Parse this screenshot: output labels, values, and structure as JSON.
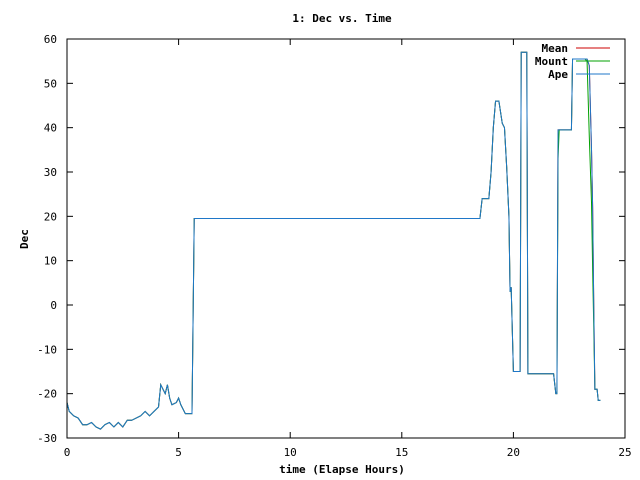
{
  "chart_data": {
    "type": "line",
    "title": "1: Dec vs. Time",
    "xlabel": "time (Elapse Hours)",
    "ylabel": "Dec",
    "xlim": [
      0,
      25
    ],
    "ylim": [
      -30,
      60
    ],
    "x_ticks": [
      0,
      5,
      10,
      15,
      20,
      25
    ],
    "y_ticks": [
      -30,
      -20,
      -10,
      0,
      10,
      20,
      30,
      40,
      50,
      60
    ],
    "legend_position": "top-right",
    "grid": false,
    "series": [
      {
        "name": "Mean",
        "color": "#cc0000",
        "points": [
          [
            0,
            -22
          ],
          [
            0.1,
            -24
          ],
          [
            0.3,
            -25
          ],
          [
            0.5,
            -25.5
          ],
          [
            0.7,
            -27
          ],
          [
            0.9,
            -27
          ],
          [
            1.1,
            -26.5
          ],
          [
            1.3,
            -27.5
          ],
          [
            1.5,
            -28
          ],
          [
            1.7,
            -27
          ],
          [
            1.9,
            -26.5
          ],
          [
            2.1,
            -27.5
          ],
          [
            2.3,
            -26.5
          ],
          [
            2.5,
            -27.5
          ],
          [
            2.7,
            -26
          ],
          [
            2.9,
            -26
          ],
          [
            3.1,
            -25.5
          ],
          [
            3.3,
            -25
          ],
          [
            3.5,
            -24
          ],
          [
            3.7,
            -25
          ],
          [
            3.9,
            -24
          ],
          [
            4.1,
            -23
          ],
          [
            4.2,
            -18
          ],
          [
            4.4,
            -20
          ],
          [
            4.5,
            -18
          ],
          [
            4.6,
            -21
          ],
          [
            4.7,
            -22.5
          ],
          [
            4.9,
            -22
          ],
          [
            5.0,
            -21
          ],
          [
            5.1,
            -22.5
          ],
          [
            5.3,
            -24.5
          ],
          [
            5.6,
            -24.5
          ],
          [
            5.7,
            19.5
          ],
          [
            18.5,
            19.5
          ],
          [
            18.6,
            24
          ],
          [
            18.9,
            24
          ],
          [
            19.0,
            30
          ],
          [
            19.1,
            40
          ],
          [
            19.2,
            46
          ],
          [
            19.35,
            46
          ],
          [
            19.5,
            41
          ],
          [
            19.6,
            40
          ],
          [
            19.7,
            31
          ],
          [
            19.8,
            20
          ],
          [
            19.85,
            3
          ],
          [
            19.9,
            4
          ],
          [
            20.0,
            -15
          ],
          [
            20.3,
            -15
          ],
          [
            20.35,
            57
          ],
          [
            20.6,
            57
          ],
          [
            20.65,
            -15.5
          ],
          [
            21.8,
            -15.5
          ],
          [
            21.9,
            -20
          ],
          [
            21.95,
            -20
          ],
          [
            22.0,
            39.5
          ],
          [
            22.6,
            39.5
          ],
          [
            22.65,
            55.5
          ],
          [
            23.3,
            55.5
          ],
          [
            23.4,
            54
          ],
          [
            23.5,
            35
          ],
          [
            23.55,
            22
          ],
          [
            23.6,
            0
          ],
          [
            23.65,
            -19
          ],
          [
            23.75,
            -19
          ],
          [
            23.8,
            -21.5
          ],
          [
            23.9,
            -21.5
          ]
        ]
      },
      {
        "name": "Mount",
        "color": "#00a000",
        "points": [
          [
            0,
            -22
          ],
          [
            0.1,
            -24
          ],
          [
            0.3,
            -25
          ],
          [
            0.5,
            -25.5
          ],
          [
            0.7,
            -27
          ],
          [
            0.9,
            -27
          ],
          [
            1.1,
            -26.5
          ],
          [
            1.3,
            -27.5
          ],
          [
            1.5,
            -28
          ],
          [
            1.7,
            -27
          ],
          [
            1.9,
            -26.5
          ],
          [
            2.1,
            -27.5
          ],
          [
            2.3,
            -26.5
          ],
          [
            2.5,
            -27.5
          ],
          [
            2.7,
            -26
          ],
          [
            2.9,
            -26
          ],
          [
            3.1,
            -25.5
          ],
          [
            3.3,
            -25
          ],
          [
            3.5,
            -24
          ],
          [
            3.7,
            -25
          ],
          [
            3.9,
            -24
          ],
          [
            4.1,
            -23
          ],
          [
            4.2,
            -18
          ],
          [
            4.4,
            -20
          ],
          [
            4.5,
            -18
          ],
          [
            4.6,
            -21
          ],
          [
            4.7,
            -22.5
          ],
          [
            4.9,
            -22
          ],
          [
            5.0,
            -21
          ],
          [
            5.1,
            -22.5
          ],
          [
            5.3,
            -24.5
          ],
          [
            5.6,
            -24.5
          ],
          [
            5.7,
            19.5
          ],
          [
            18.5,
            19.5
          ],
          [
            18.6,
            24
          ],
          [
            18.9,
            24
          ],
          [
            19.0,
            30
          ],
          [
            19.1,
            40
          ],
          [
            19.2,
            46
          ],
          [
            19.35,
            46
          ],
          [
            19.5,
            41
          ],
          [
            19.6,
            40
          ],
          [
            19.7,
            31
          ],
          [
            19.8,
            20
          ],
          [
            19.85,
            3
          ],
          [
            19.9,
            4
          ],
          [
            20.0,
            -15
          ],
          [
            20.3,
            -15
          ],
          [
            20.35,
            57
          ],
          [
            20.6,
            57
          ],
          [
            20.65,
            -15.5
          ],
          [
            21.8,
            -15.5
          ],
          [
            21.9,
            -20
          ],
          [
            21.95,
            -20
          ],
          [
            22.0,
            33
          ],
          [
            22.05,
            39.5
          ],
          [
            22.6,
            39.5
          ],
          [
            22.65,
            55.5
          ],
          [
            23.2,
            55.5
          ],
          [
            23.3,
            55
          ],
          [
            23.4,
            38
          ],
          [
            23.5,
            23
          ],
          [
            23.55,
            8
          ],
          [
            23.6,
            -5
          ],
          [
            23.65,
            -19
          ],
          [
            23.75,
            -19
          ],
          [
            23.8,
            -21.5
          ],
          [
            23.9,
            -21.5
          ]
        ]
      },
      {
        "name": "Ape",
        "color": "#1f77c8",
        "points": [
          [
            0,
            -22
          ],
          [
            0.1,
            -24
          ],
          [
            0.3,
            -25
          ],
          [
            0.5,
            -25.5
          ],
          [
            0.7,
            -27
          ],
          [
            0.9,
            -27
          ],
          [
            1.1,
            -26.5
          ],
          [
            1.3,
            -27.5
          ],
          [
            1.5,
            -28
          ],
          [
            1.7,
            -27
          ],
          [
            1.9,
            -26.5
          ],
          [
            2.1,
            -27.5
          ],
          [
            2.3,
            -26.5
          ],
          [
            2.5,
            -27.5
          ],
          [
            2.7,
            -26
          ],
          [
            2.9,
            -26
          ],
          [
            3.1,
            -25.5
          ],
          [
            3.3,
            -25
          ],
          [
            3.5,
            -24
          ],
          [
            3.7,
            -25
          ],
          [
            3.9,
            -24
          ],
          [
            4.1,
            -23
          ],
          [
            4.2,
            -18
          ],
          [
            4.4,
            -20
          ],
          [
            4.5,
            -18
          ],
          [
            4.6,
            -21
          ],
          [
            4.7,
            -22.5
          ],
          [
            4.9,
            -22
          ],
          [
            5.0,
            -21
          ],
          [
            5.1,
            -22.5
          ],
          [
            5.3,
            -24.5
          ],
          [
            5.6,
            -24.5
          ],
          [
            5.7,
            19.5
          ],
          [
            17.6,
            19.5
          ],
          [
            17.7,
            19.5
          ],
          [
            18.5,
            19.5
          ],
          [
            18.6,
            24
          ],
          [
            18.9,
            24
          ],
          [
            19.0,
            30
          ],
          [
            19.1,
            40
          ],
          [
            19.2,
            46
          ],
          [
            19.35,
            46
          ],
          [
            19.5,
            41
          ],
          [
            19.6,
            40
          ],
          [
            19.7,
            31
          ],
          [
            19.8,
            20
          ],
          [
            19.85,
            3
          ],
          [
            19.9,
            4
          ],
          [
            20.0,
            -15
          ],
          [
            20.3,
            -15
          ],
          [
            20.35,
            57
          ],
          [
            20.6,
            57
          ],
          [
            20.65,
            -15.5
          ],
          [
            21.8,
            -15.5
          ],
          [
            21.9,
            -20
          ],
          [
            21.95,
            -20
          ],
          [
            22.0,
            39.5
          ],
          [
            22.6,
            39.5
          ],
          [
            22.65,
            55.5
          ],
          [
            23.3,
            55.5
          ],
          [
            23.4,
            54
          ],
          [
            23.5,
            35
          ],
          [
            23.55,
            22
          ],
          [
            23.6,
            0
          ],
          [
            23.65,
            -19
          ],
          [
            23.75,
            -19
          ],
          [
            23.8,
            -21.5
          ],
          [
            23.9,
            -21.5
          ]
        ]
      }
    ]
  }
}
